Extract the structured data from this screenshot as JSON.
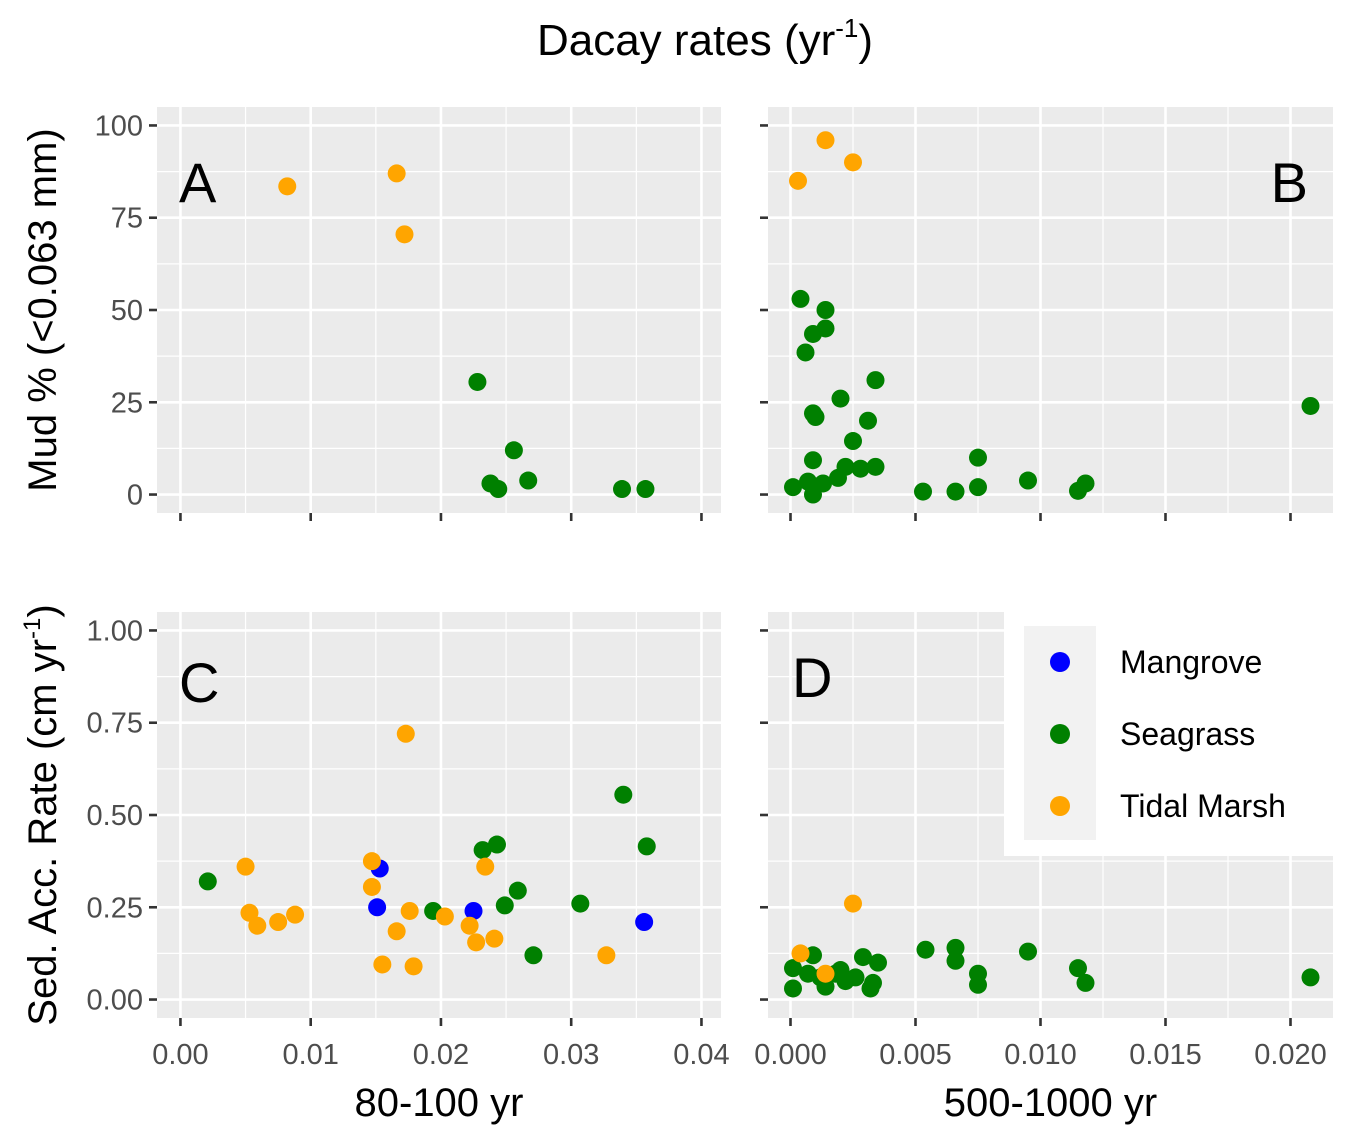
{
  "figure_title_main": "Dacay rates (yr",
  "figure_title_exp": "-1",
  "figure_title_close": ")",
  "colors": {
    "Mangrove": "#0000ff",
    "Seagrass": "#008000",
    "Tidal Marsh": "#ffa500"
  },
  "legend": [
    "Mangrove",
    "Seagrass",
    "Tidal Marsh"
  ],
  "chart_data": [
    {
      "panel": "A",
      "type": "scatter",
      "xlabel": "80-100 yr",
      "ylabel": "Mud % (<0.063 mm)",
      "xlim": [
        -0.0018,
        0.0415
      ],
      "ylim": [
        -5,
        105
      ],
      "xticks": [],
      "xtick_labels": [],
      "yticks": [
        0,
        25,
        50,
        75,
        100
      ],
      "ytick_labels": [
        "0",
        "25",
        "50",
        "75",
        "100"
      ],
      "series": [
        {
          "name": "Tidal Marsh",
          "points": [
            [
              0.0082,
              83.5
            ],
            [
              0.0166,
              87
            ],
            [
              0.0172,
              70.5
            ]
          ]
        },
        {
          "name": "Seagrass",
          "points": [
            [
              0.0228,
              30.5
            ],
            [
              0.0256,
              12
            ],
            [
              0.0238,
              3
            ],
            [
              0.0244,
              1.5
            ],
            [
              0.0267,
              3.8
            ],
            [
              0.0339,
              1.5
            ],
            [
              0.0357,
              1.5
            ]
          ]
        }
      ]
    },
    {
      "panel": "B",
      "type": "scatter",
      "xlabel": "500-1000 yr",
      "ylabel": "",
      "xlim": [
        -0.0009,
        0.0217
      ],
      "ylim": [
        -5,
        105
      ],
      "xticks": [],
      "xtick_labels": [],
      "yticks": [
        0,
        25,
        50,
        75,
        100
      ],
      "ytick_labels": [
        "",
        "",
        "",
        "",
        ""
      ],
      "series": [
        {
          "name": "Tidal Marsh",
          "points": [
            [
              0.0003,
              85
            ],
            [
              0.0014,
              96
            ],
            [
              0.0025,
              90
            ]
          ]
        },
        {
          "name": "Seagrass",
          "points": [
            [
              0.0004,
              53
            ],
            [
              0.0014,
              50
            ],
            [
              0.0009,
              43.5
            ],
            [
              0.0014,
              45
            ],
            [
              0.0006,
              38.5
            ],
            [
              0.0034,
              31
            ],
            [
              0.002,
              26
            ],
            [
              0.0009,
              22
            ],
            [
              0.001,
              21
            ],
            [
              0.0031,
              20
            ],
            [
              0.0025,
              14.5
            ],
            [
              0.0009,
              9.3
            ],
            [
              0.0022,
              7.5
            ],
            [
              0.0028,
              7
            ],
            [
              0.0034,
              7.5
            ],
            [
              0.0019,
              4.5
            ],
            [
              0.0007,
              3.5
            ],
            [
              0.0013,
              3
            ],
            [
              0.0001,
              2
            ],
            [
              0.0009,
              0
            ],
            [
              0.0053,
              0.8
            ],
            [
              0.0066,
              0.8
            ],
            [
              0.0075,
              10
            ],
            [
              0.0075,
              2
            ],
            [
              0.0095,
              3.8
            ],
            [
              0.0115,
              1
            ],
            [
              0.0118,
              3
            ],
            [
              0.0208,
              24
            ]
          ]
        }
      ]
    },
    {
      "panel": "C",
      "type": "scatter",
      "xlabel": "80-100 yr",
      "ylabel": "Sed. Acc. Rate (cm yr-1)",
      "xlim": [
        -0.0018,
        0.0415
      ],
      "ylim": [
        -0.05,
        1.05
      ],
      "xticks": [
        0,
        0.01,
        0.02,
        0.03,
        0.04
      ],
      "xtick_labels": [
        "0.00",
        "0.01",
        "0.02",
        "0.03",
        "0.04"
      ],
      "yticks": [
        0,
        0.25,
        0.5,
        0.75,
        1.0
      ],
      "ytick_labels": [
        "0.00",
        "0.25",
        "0.50",
        "0.75",
        "1.00"
      ],
      "series": [
        {
          "name": "Mangrove",
          "points": [
            [
              0.0153,
              0.355
            ],
            [
              0.0151,
              0.25
            ],
            [
              0.0225,
              0.24
            ],
            [
              0.0356,
              0.21
            ]
          ]
        },
        {
          "name": "Seagrass",
          "points": [
            [
              0.0021,
              0.32
            ],
            [
              0.0194,
              0.24
            ],
            [
              0.0232,
              0.405
            ],
            [
              0.0243,
              0.42
            ],
            [
              0.0259,
              0.295
            ],
            [
              0.0249,
              0.255
            ],
            [
              0.0271,
              0.12
            ],
            [
              0.0307,
              0.26
            ],
            [
              0.034,
              0.555
            ],
            [
              0.0358,
              0.415
            ]
          ]
        },
        {
          "name": "Tidal Marsh",
          "points": [
            [
              0.005,
              0.36
            ],
            [
              0.0053,
              0.235
            ],
            [
              0.0059,
              0.2
            ],
            [
              0.0075,
              0.21
            ],
            [
              0.0088,
              0.23
            ],
            [
              0.0147,
              0.375
            ],
            [
              0.0147,
              0.305
            ],
            [
              0.0173,
              0.72
            ],
            [
              0.0155,
              0.095
            ],
            [
              0.0166,
              0.185
            ],
            [
              0.0176,
              0.24
            ],
            [
              0.0179,
              0.09
            ],
            [
              0.0203,
              0.225
            ],
            [
              0.0222,
              0.2
            ],
            [
              0.0227,
              0.155
            ],
            [
              0.0234,
              0.36
            ],
            [
              0.0241,
              0.165
            ],
            [
              0.0327,
              0.12
            ]
          ]
        }
      ]
    },
    {
      "panel": "D",
      "type": "scatter",
      "xlabel": "500-1000 yr",
      "ylabel": "",
      "xlim": [
        -0.0009,
        0.0217
      ],
      "ylim": [
        -0.05,
        1.05
      ],
      "xticks": [
        0,
        0.005,
        0.01,
        0.015,
        0.02
      ],
      "xtick_labels": [
        "0.000",
        "0.005",
        "0.010",
        "0.015",
        "0.020"
      ],
      "yticks": [
        0,
        0.25,
        0.5,
        0.75,
        1.0
      ],
      "ytick_labels": [
        "",
        "",
        "",
        "",
        ""
      ],
      "series": [
        {
          "name": "Seagrass",
          "points": [
            [
              0.0001,
              0.085
            ],
            [
              0.0001,
              0.03
            ],
            [
              0.0009,
              0.12
            ],
            [
              0.0007,
              0.07
            ],
            [
              0.0012,
              0.06
            ],
            [
              0.0014,
              0.035
            ],
            [
              0.0018,
              0.07
            ],
            [
              0.002,
              0.08
            ],
            [
              0.0022,
              0.05
            ],
            [
              0.0026,
              0.06
            ],
            [
              0.0029,
              0.115
            ],
            [
              0.0032,
              0.03
            ],
            [
              0.0033,
              0.045
            ],
            [
              0.0035,
              0.1
            ],
            [
              0.0054,
              0.135
            ],
            [
              0.0066,
              0.14
            ],
            [
              0.0066,
              0.105
            ],
            [
              0.0075,
              0.07
            ],
            [
              0.0075,
              0.04
            ],
            [
              0.0095,
              0.13
            ],
            [
              0.0115,
              0.085
            ],
            [
              0.0118,
              0.045
            ],
            [
              0.0208,
              0.06
            ]
          ]
        },
        {
          "name": "Tidal Marsh",
          "points": [
            [
              0.0004,
              0.125
            ],
            [
              0.0014,
              0.07
            ],
            [
              0.0025,
              0.26
            ]
          ]
        }
      ]
    }
  ]
}
